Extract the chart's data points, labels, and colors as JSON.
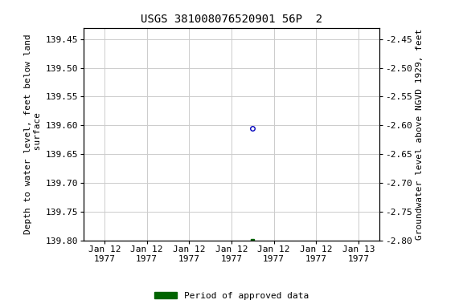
{
  "title": "USGS 381008076520901 56P  2",
  "ylabel_left": "Depth to water level, feet below land\n surface",
  "ylabel_right": "Groundwater level above NGVD 1929, feet",
  "ylim_left": [
    139.8,
    139.43
  ],
  "ylim_right": [
    -2.8,
    -2.43
  ],
  "yticks_left": [
    139.45,
    139.5,
    139.55,
    139.6,
    139.65,
    139.7,
    139.75,
    139.8
  ],
  "yticks_right": [
    -2.45,
    -2.5,
    -2.55,
    -2.6,
    -2.65,
    -2.7,
    -2.75,
    -2.8
  ],
  "xtick_labels": [
    "Jan 12\n1977",
    "Jan 12\n1977",
    "Jan 12\n1977",
    "Jan 12\n1977",
    "Jan 12\n1977",
    "Jan 12\n1977",
    "Jan 13\n1977"
  ],
  "xtick_positions": [
    0,
    1,
    2,
    3,
    4,
    5,
    6
  ],
  "xlim": [
    -0.5,
    6.5
  ],
  "data_point_blue": {
    "x": 3.5,
    "value": 139.605
  },
  "data_point_green": {
    "x": 3.5,
    "value": 139.8
  },
  "grid_color": "#cccccc",
  "background_color": "#ffffff",
  "blue_marker_color": "#0000bb",
  "green_marker_color": "#006400",
  "legend_label": "Period of approved data",
  "title_fontsize": 10,
  "axis_fontsize": 8,
  "tick_fontsize": 8
}
